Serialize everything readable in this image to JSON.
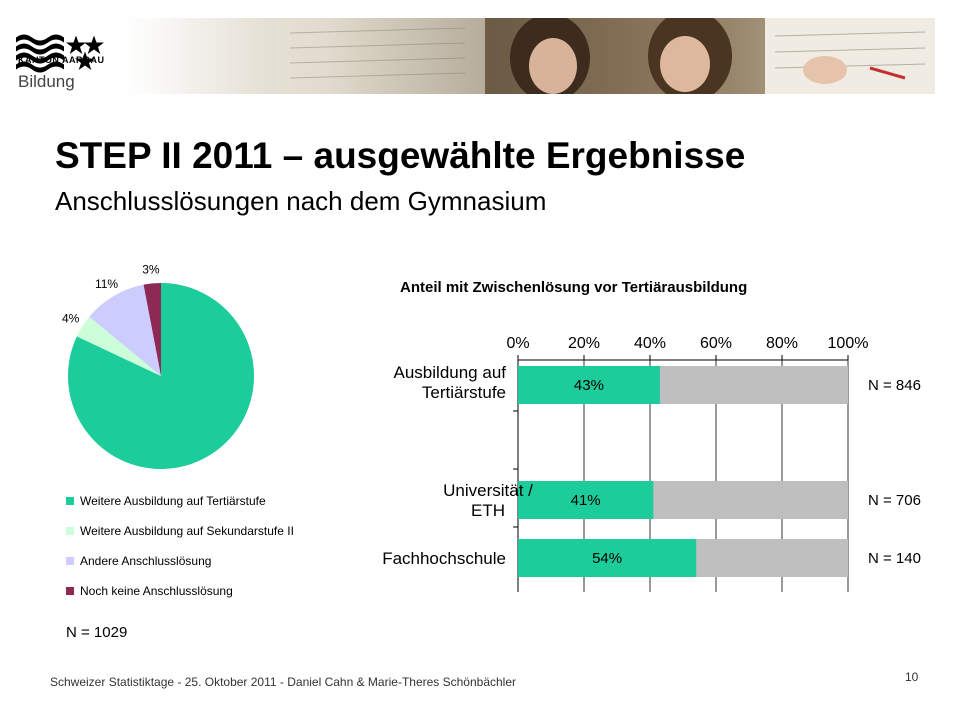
{
  "header": {
    "logo_text": "KANTON AARGAU",
    "department": "Bildung"
  },
  "slide": {
    "title": "STEP II 2011 – ausgewählte Ergebnisse",
    "subtitle": "Anschlusslösungen nach dem Gymnasium"
  },
  "colors": {
    "teal": "#1ccc9a",
    "light_green": "#ccffd9",
    "lavender": "#ccccff",
    "maroon": "#8c2a55",
    "grey_bar": "#bfbfbf"
  },
  "chart_data": [
    {
      "type": "pie",
      "slice_labels": [
        "",
        "4%",
        "11%",
        "3%"
      ],
      "values": [
        82,
        4,
        11,
        3
      ],
      "legend": [
        "Weitere Ausbildung auf Tertiärstufe",
        "Weitere Ausbildung auf Sekundarstufe II",
        "Andere Anschlusslösung",
        "Noch keine Anschlusslösung"
      ],
      "legend_placement": "bottom",
      "note": "N = 1029"
    },
    {
      "type": "bar",
      "orientation": "horizontal",
      "stacked": true,
      "title": "Anteil mit Zwischenlösung vor Tertiärausbildung",
      "categories": [
        "Ausbildung auf Tertiärstufe",
        "Universität / ETH",
        "Fachhochschule"
      ],
      "category_lines": [
        [
          "Ausbildung auf",
          "Tertiärstufe"
        ],
        [
          "Universität /",
          "ETH"
        ],
        [
          "Fachhochschule"
        ]
      ],
      "values": [
        43,
        41,
        54
      ],
      "value_labels": [
        "43%",
        "41%",
        "54%"
      ],
      "x_ticks": [
        "0%",
        "20%",
        "40%",
        "60%",
        "80%",
        "100%"
      ],
      "xlim": [
        0,
        100
      ],
      "grid": true,
      "n_labels": [
        "N = 846",
        "N = 706",
        "N = 140"
      ]
    }
  ],
  "footer": {
    "text": "Schweizer Statistiktage - 25. Oktober 2011 - Daniel Cahn & Marie-Theres Schönbächler",
    "page_number": "10"
  }
}
